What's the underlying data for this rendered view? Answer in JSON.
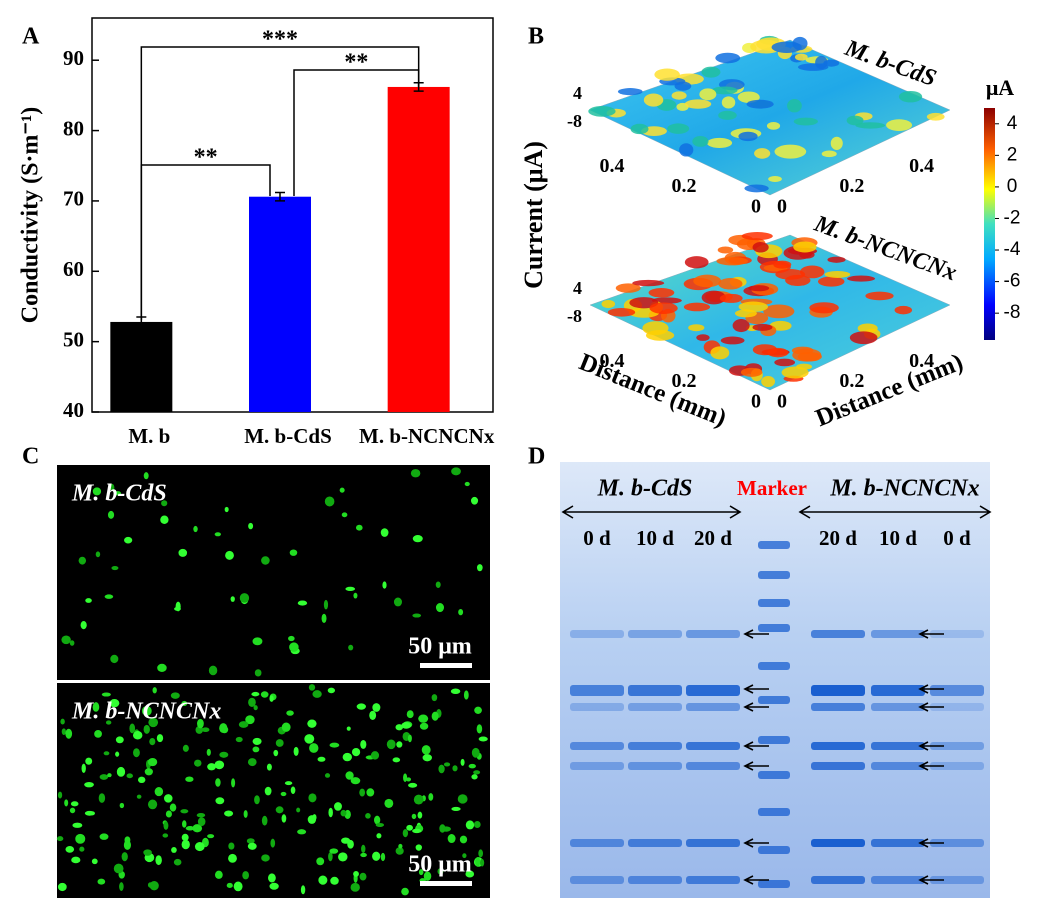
{
  "panel_letters": [
    "A",
    "B",
    "C",
    "D"
  ],
  "chart_data": [
    {
      "type": "bar",
      "ylabel": "Conductivity (S·m⁻¹)",
      "categories": [
        "M. b",
        "M. b-CdS",
        "M. b-NCNCNx"
      ],
      "values": [
        52.8,
        70.6,
        86.2
      ],
      "errors": [
        0.7,
        0.6,
        0.6
      ],
      "colors": [
        "#000000",
        "#0000ff",
        "#ff0000"
      ],
      "ylim": [
        40,
        96
      ],
      "yticks": [
        40,
        50,
        60,
        70,
        80,
        90
      ],
      "significance": [
        "**",
        "**",
        "***"
      ]
    },
    {
      "type": "surface",
      "zlabel": "Current (μA)",
      "xlabel": "Distance (mm)",
      "ylabel": "Distance (mm)",
      "panels": [
        {
          "title": "M. b-CdS"
        },
        {
          "title": "M. b-NCNCNx"
        }
      ],
      "xlim": [
        0,
        0.5
      ],
      "xticks": [
        0.4,
        0.2,
        0
      ],
      "ylim": [
        0,
        0.5
      ],
      "yticks": [
        0,
        0.2,
        0.4
      ],
      "zlim": [
        -8,
        4
      ],
      "zticks": [
        4,
        -8
      ],
      "colorbar": {
        "label": "μA",
        "lim": [
          -9.7,
          5
        ],
        "ticks": [
          4,
          2,
          0,
          -2,
          -4,
          -6,
          -8
        ]
      }
    }
  ],
  "micrographs": [
    {
      "label": "M. b-CdS",
      "scale": "50 μm"
    },
    {
      "label": "M. b-NCNCNx",
      "scale": "50 μm"
    }
  ],
  "gel": {
    "groups": [
      "M. b-CdS",
      "Marker",
      "M. b-NCNCNx"
    ],
    "lanes": [
      "0 d",
      "10 d",
      "20 d",
      "20 d",
      "10 d",
      "0 d"
    ]
  }
}
